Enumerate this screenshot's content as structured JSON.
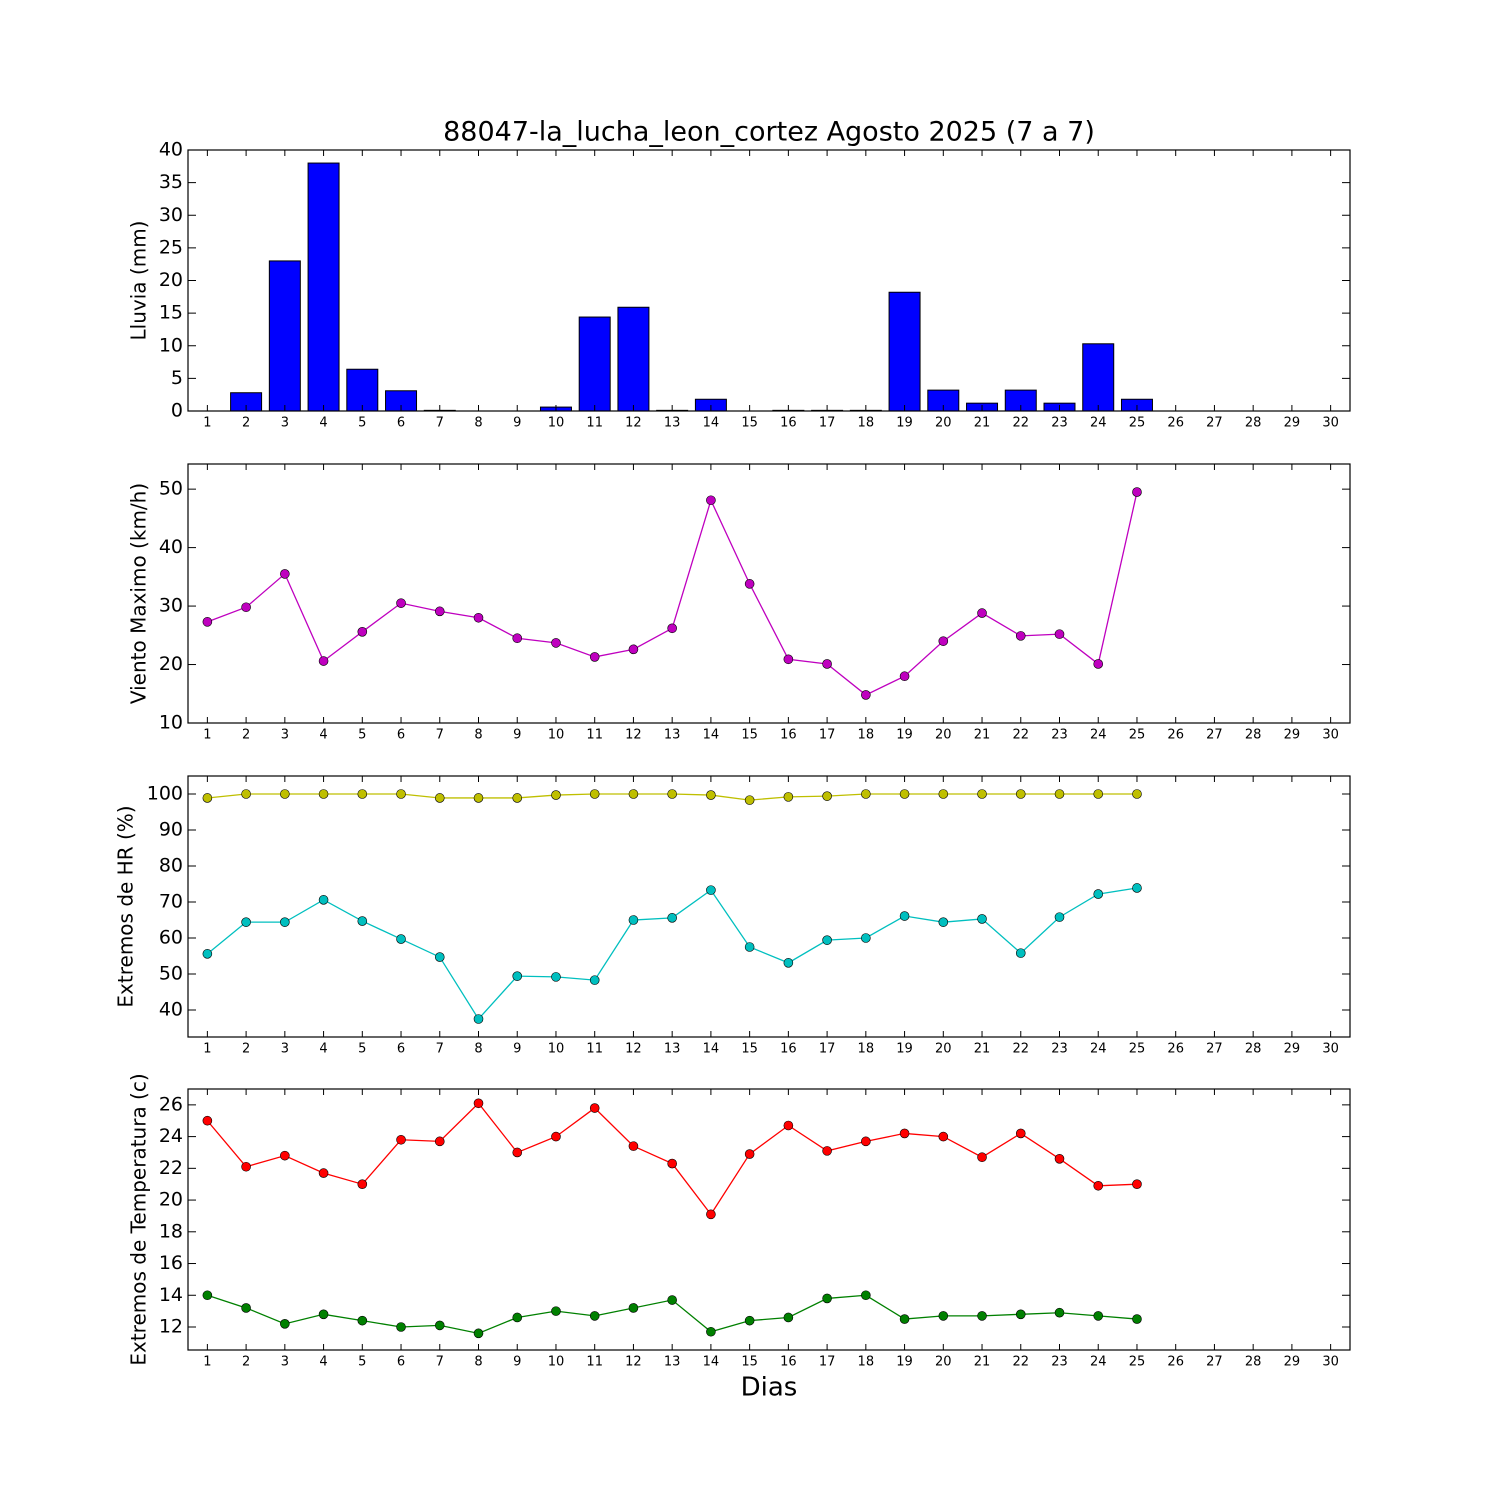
{
  "chart_data": [
    {
      "type": "bar",
      "title": "88047-la_lucha_leon_cortez Agosto 2025  (7 a 7)",
      "ylabel": "Lluvia (mm)",
      "color": "#0000ff",
      "x": [
        1,
        2,
        3,
        4,
        5,
        6,
        7,
        8,
        9,
        10,
        11,
        12,
        13,
        14,
        15,
        16,
        17,
        18,
        19,
        20,
        21,
        22,
        23,
        24,
        25,
        26,
        27,
        28,
        29,
        30
      ],
      "values": [
        0,
        2.8,
        23.0,
        38.0,
        6.4,
        3.1,
        0.1,
        0,
        0,
        0.6,
        14.4,
        15.9,
        0.1,
        1.8,
        0,
        0.1,
        0.1,
        0.1,
        18.2,
        3.2,
        1.2,
        3.2,
        1.2,
        10.3,
        1.8,
        null,
        null,
        null,
        null,
        null
      ],
      "xlim": [
        0.5,
        30.5
      ],
      "xticks": [
        1,
        2,
        3,
        4,
        5,
        6,
        7,
        8,
        9,
        10,
        11,
        12,
        13,
        14,
        15,
        16,
        17,
        18,
        19,
        20,
        21,
        22,
        23,
        24,
        25,
        26,
        27,
        28,
        29,
        30
      ],
      "ylim": [
        0,
        40
      ],
      "yticks": [
        0,
        5,
        10,
        15,
        20,
        25,
        30,
        35,
        40
      ]
    },
    {
      "type": "line",
      "ylabel": "Viento Maximo (km/h)",
      "x": [
        1,
        2,
        3,
        4,
        5,
        6,
        7,
        8,
        9,
        10,
        11,
        12,
        13,
        14,
        15,
        16,
        17,
        18,
        19,
        20,
        21,
        22,
        23,
        24,
        25,
        26,
        27,
        28,
        29,
        30
      ],
      "series": [
        {
          "color": "#bf00bf",
          "values": [
            27.3,
            29.8,
            35.5,
            20.6,
            25.6,
            30.5,
            29.1,
            28.0,
            24.5,
            23.7,
            21.3,
            22.6,
            26.2,
            48.1,
            33.8,
            20.9,
            20.1,
            14.8,
            18.0,
            24.0,
            28.8,
            24.9,
            25.2,
            20.1,
            49.5,
            null,
            null,
            null,
            null,
            null
          ]
        }
      ],
      "xlim": [
        0.5,
        30.5
      ],
      "xticks": [
        1,
        2,
        3,
        4,
        5,
        6,
        7,
        8,
        9,
        10,
        11,
        12,
        13,
        14,
        15,
        16,
        17,
        18,
        19,
        20,
        21,
        22,
        23,
        24,
        25,
        26,
        27,
        28,
        29,
        30
      ],
      "ylim": [
        10,
        54.3
      ],
      "yticks": [
        10,
        20,
        30,
        40,
        50
      ]
    },
    {
      "type": "line",
      "ylabel": "Extremos de HR (%)",
      "x": [
        1,
        2,
        3,
        4,
        5,
        6,
        7,
        8,
        9,
        10,
        11,
        12,
        13,
        14,
        15,
        16,
        17,
        18,
        19,
        20,
        21,
        22,
        23,
        24,
        25,
        26,
        27,
        28,
        29,
        30
      ],
      "series": [
        {
          "color": "#bfbf00",
          "values": [
            98.9,
            100,
            100,
            100,
            100,
            100,
            98.9,
            98.9,
            98.9,
            99.7,
            100,
            100,
            100,
            99.7,
            98.3,
            99.2,
            99.4,
            100,
            100,
            100,
            100,
            100,
            100,
            100,
            100,
            null,
            null,
            null,
            null,
            null
          ]
        },
        {
          "color": "#00bfbf",
          "values": [
            55.6,
            64.4,
            64.4,
            70.6,
            64.7,
            59.7,
            54.7,
            37.5,
            49.4,
            49.2,
            48.3,
            65.0,
            65.6,
            73.3,
            57.5,
            53.1,
            59.4,
            60.0,
            66.1,
            64.4,
            65.3,
            55.8,
            65.8,
            72.2,
            73.9,
            null,
            null,
            null,
            null,
            null
          ]
        }
      ],
      "xlim": [
        0.5,
        30.5
      ],
      "xticks": [
        1,
        2,
        3,
        4,
        5,
        6,
        7,
        8,
        9,
        10,
        11,
        12,
        13,
        14,
        15,
        16,
        17,
        18,
        19,
        20,
        21,
        22,
        23,
        24,
        25,
        26,
        27,
        28,
        29,
        30
      ],
      "ylim": [
        32.5,
        105
      ],
      "yticks": [
        40,
        50,
        60,
        70,
        80,
        90,
        100
      ]
    },
    {
      "type": "line",
      "ylabel": "Extremos de Temperatura (c)",
      "xlabel": "Dias",
      "x": [
        1,
        2,
        3,
        4,
        5,
        6,
        7,
        8,
        9,
        10,
        11,
        12,
        13,
        14,
        15,
        16,
        17,
        18,
        19,
        20,
        21,
        22,
        23,
        24,
        25,
        26,
        27,
        28,
        29,
        30
      ],
      "series": [
        {
          "color": "#ff0000",
          "values": [
            25.0,
            22.1,
            22.8,
            21.7,
            21.0,
            23.8,
            23.7,
            26.1,
            23.0,
            24.0,
            25.8,
            23.4,
            22.3,
            19.1,
            22.9,
            24.7,
            23.1,
            23.7,
            24.2,
            24.0,
            22.7,
            24.2,
            22.6,
            20.9,
            21.0,
            null,
            null,
            null,
            null,
            null
          ]
        },
        {
          "color": "#008000",
          "values": [
            14.0,
            13.2,
            12.2,
            12.8,
            12.4,
            12.0,
            12.1,
            11.6,
            12.6,
            13.0,
            12.7,
            13.2,
            13.7,
            11.7,
            12.4,
            12.6,
            13.8,
            14.0,
            12.5,
            12.7,
            12.7,
            12.8,
            12.9,
            12.7,
            12.5,
            null,
            null,
            null,
            null,
            null
          ]
        }
      ],
      "xlim": [
        0.5,
        30.5
      ],
      "xticks": [
        1,
        2,
        3,
        4,
        5,
        6,
        7,
        8,
        9,
        10,
        11,
        12,
        13,
        14,
        15,
        16,
        17,
        18,
        19,
        20,
        21,
        22,
        23,
        24,
        25,
        26,
        27,
        28,
        29,
        30
      ],
      "ylim": [
        10.55,
        27
      ],
      "yticks": [
        12,
        14,
        16,
        18,
        20,
        22,
        24,
        26
      ]
    }
  ]
}
